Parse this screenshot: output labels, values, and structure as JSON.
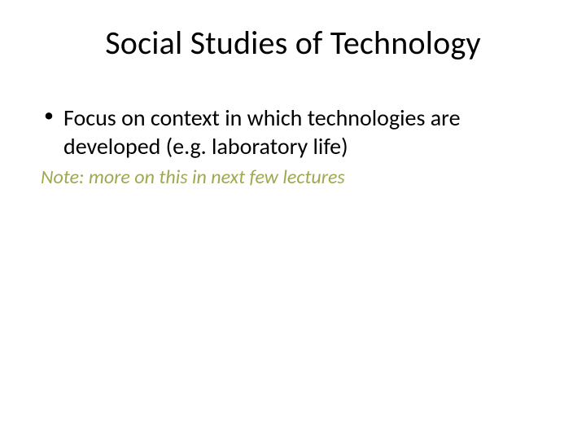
{
  "slide": {
    "title": "Social Studies of Technology",
    "bullets": [
      "Focus on context in which technologies are developed (e.g. laboratory life)"
    ],
    "note": "Note: more on this in next few lectures",
    "colors": {
      "background": "#ffffff",
      "title_color": "#000000",
      "body_color": "#000000",
      "note_color": "#a0a850"
    },
    "typography": {
      "title_fontsize": 40,
      "body_fontsize": 28,
      "note_fontsize": 24,
      "font_family": "Calibri"
    }
  }
}
